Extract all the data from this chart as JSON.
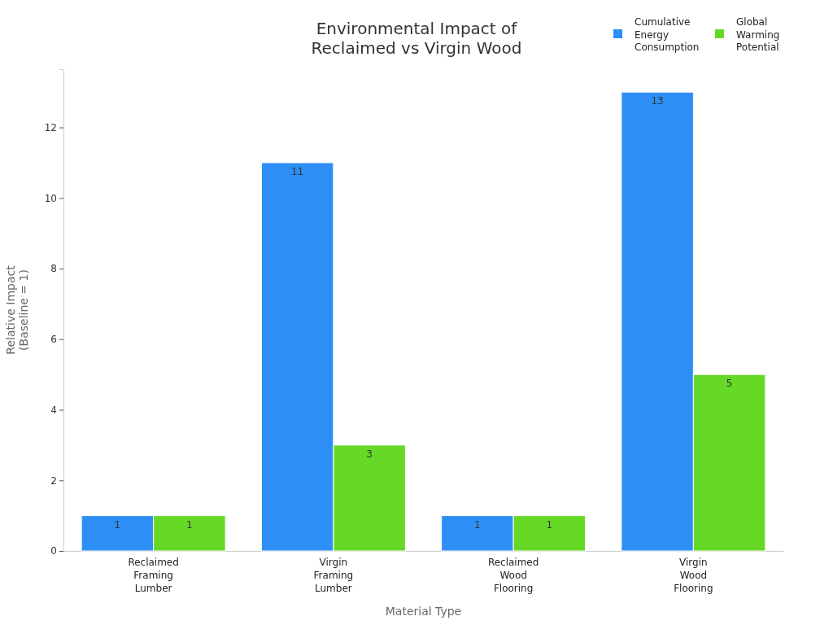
{
  "chart_data": {
    "type": "bar",
    "title": "Environmental Impact of Reclaimed vs Virgin Wood",
    "xlabel": "Material Type",
    "ylabel": "Relative Impact (Baseline = 1)",
    "categories": [
      "Reclaimed Framing Lumber",
      "Virgin Framing Lumber",
      "Reclaimed Wood Flooring",
      "Virgin Wood Flooring"
    ],
    "series": [
      {
        "name": "Cumulative Energy Consumption",
        "color": "#2d8ff5",
        "values": [
          1,
          11,
          1,
          13
        ]
      },
      {
        "name": "Global Warming Potential",
        "color": "#66d926",
        "values": [
          1,
          3,
          1,
          5
        ]
      }
    ],
    "ylim": [
      0,
      13.65
    ],
    "yticks": [
      0,
      2,
      4,
      6,
      8,
      10,
      12
    ],
    "data_labels": true,
    "legend": "top right",
    "grid": false
  }
}
